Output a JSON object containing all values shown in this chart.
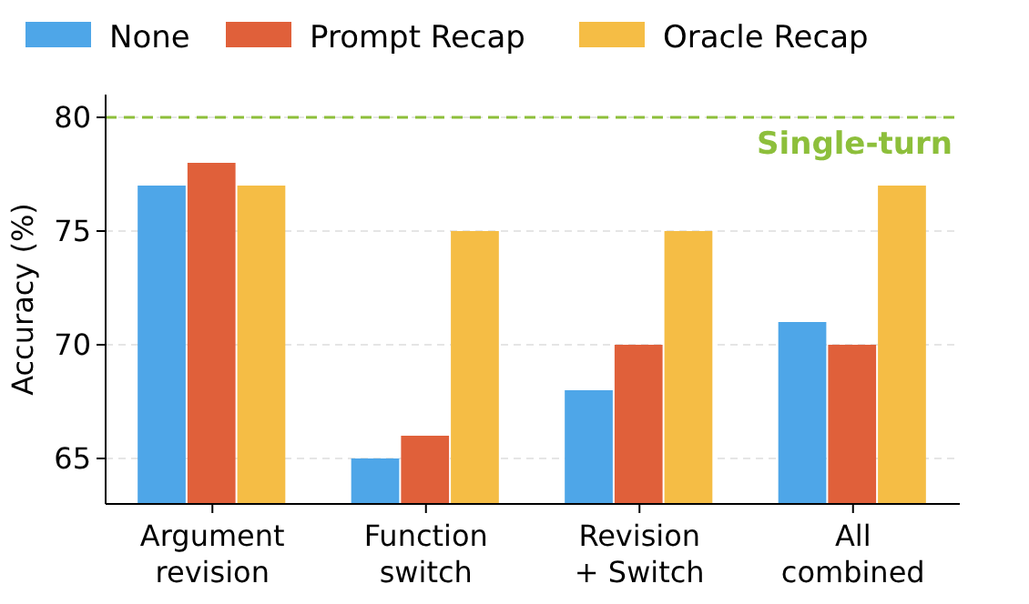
{
  "chart_data": {
    "type": "bar",
    "ylabel": "Accuracy (%)",
    "categories": [
      "Argument\nrevision",
      "Function\nswitch",
      "Revision\n+ Switch",
      "All\ncombined"
    ],
    "series": [
      {
        "name": "None",
        "color": "#4ea6e8",
        "values": [
          77,
          65,
          68,
          71
        ]
      },
      {
        "name": "Prompt Recap",
        "color": "#e0603a",
        "values": [
          78,
          66,
          70,
          70
        ]
      },
      {
        "name": "Oracle Recap",
        "color": "#f5bd45",
        "values": [
          77,
          75,
          75,
          77
        ]
      }
    ],
    "ylim": [
      63,
      81
    ],
    "yticks": [
      65,
      70,
      75,
      80
    ],
    "grid": "y",
    "legend": "top",
    "ref_lines": [
      {
        "axis": "y",
        "value": 80,
        "label": "Single-turn",
        "color": "#8dbf3b",
        "line_style": "dashed"
      }
    ]
  }
}
